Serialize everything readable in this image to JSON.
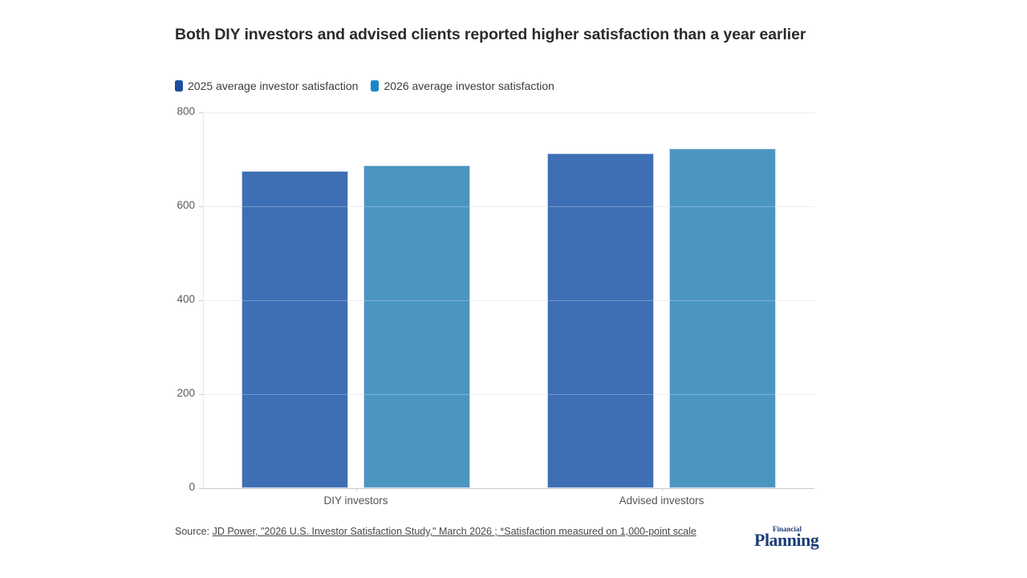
{
  "title": "Both DIY investors and advised clients reported higher satisfaction than a year earlier",
  "chart_data": {
    "type": "bar",
    "categories": [
      "DIY investors",
      "Advised investors"
    ],
    "series": [
      {
        "name": "2025 average investor satisfaction",
        "color": "#3e6fb4",
        "legend_color": "#1b4f9e",
        "values": [
          675,
          712
        ]
      },
      {
        "name": "2026 average investor satisfaction",
        "color": "#4b95c1",
        "legend_color": "#1a87c4",
        "values": [
          687,
          723
        ]
      }
    ],
    "ylim": [
      0,
      800
    ],
    "yticks": [
      0,
      200,
      400,
      600,
      800
    ],
    "grid": "horizontal",
    "legend_position": "top-left",
    "xlabel": "",
    "ylabel": ""
  },
  "source": {
    "prefix": "Source: ",
    "link_text": "JD Power, \"2026 U.S. Investor Satisfaction Study,\" March 2026 ; *Satisfaction measured on 1,000-point scale"
  },
  "logo": {
    "financial": "Financial",
    "planning": "Planning"
  }
}
